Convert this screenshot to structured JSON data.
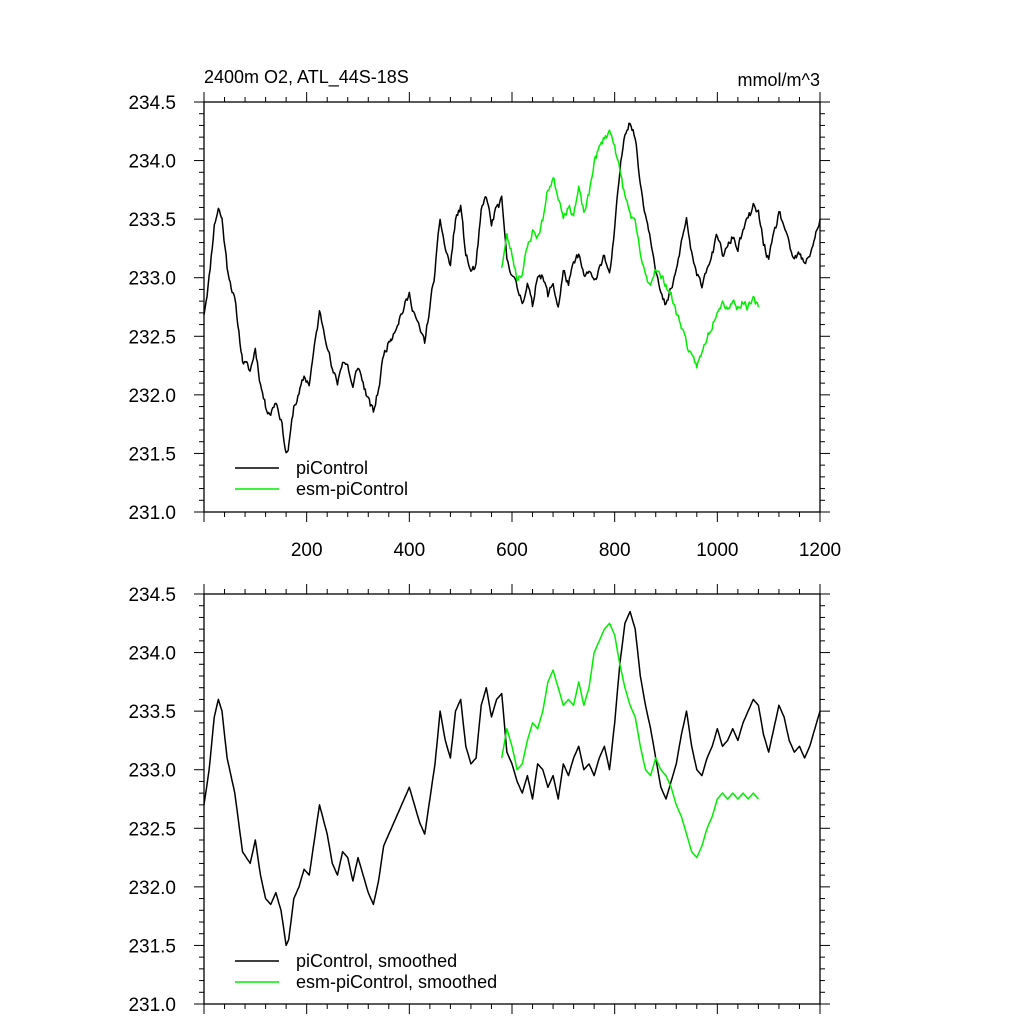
{
  "figure": {
    "title_left": "2400m O2, ATL_44S-18S",
    "title_right": "mmol/m^3"
  },
  "chart_data": [
    {
      "type": "line",
      "title": "2400m O2, ATL_44S-18S",
      "units": "mmol/m^3",
      "xlim": [
        0,
        1200
      ],
      "ylim": [
        231.0,
        234.5
      ],
      "xticks": [
        200,
        400,
        600,
        800,
        1000,
        1200
      ],
      "yticks": [
        "231.0",
        "231.5",
        "232.0",
        "232.5",
        "233.0",
        "233.5",
        "234.0",
        "234.5"
      ],
      "grid": false,
      "legend_position": "bottom-left",
      "series": [
        {
          "name": "piControl",
          "color": "#000000",
          "noise": 0.06,
          "seed": 11,
          "x": [
            0,
            10,
            20,
            28,
            35,
            45,
            60,
            75,
            90,
            100,
            110,
            120,
            130,
            140,
            150,
            160,
            165,
            175,
            185,
            195,
            205,
            215,
            225,
            240,
            250,
            260,
            270,
            280,
            290,
            300,
            310,
            320,
            330,
            340,
            350,
            365,
            380,
            390,
            400,
            410,
            420,
            430,
            440,
            450,
            460,
            470,
            480,
            490,
            500,
            510,
            520,
            530,
            540,
            550,
            560,
            570,
            580,
            590,
            600,
            610,
            620,
            630,
            640,
            650,
            660,
            670,
            680,
            690,
            700,
            710,
            720,
            730,
            740,
            750,
            760,
            770,
            780,
            790,
            800,
            810,
            820,
            830,
            840,
            850,
            860,
            870,
            880,
            890,
            900,
            910,
            920,
            930,
            940,
            950,
            960,
            970,
            980,
            990,
            1000,
            1010,
            1020,
            1030,
            1040,
            1050,
            1060,
            1070,
            1080,
            1090,
            1100,
            1110,
            1120,
            1130,
            1140,
            1150,
            1160,
            1170,
            1180,
            1190,
            1200
          ],
          "values": [
            232.7,
            233.0,
            233.45,
            233.6,
            233.5,
            233.1,
            232.8,
            232.3,
            232.2,
            232.4,
            232.1,
            231.9,
            231.85,
            231.95,
            231.8,
            231.5,
            231.55,
            231.9,
            232.0,
            232.15,
            232.1,
            232.4,
            232.7,
            232.45,
            232.2,
            232.1,
            232.3,
            232.25,
            232.05,
            232.25,
            232.1,
            231.95,
            231.85,
            232.05,
            232.35,
            232.5,
            232.65,
            232.75,
            232.85,
            232.7,
            232.55,
            232.45,
            232.75,
            233.05,
            233.5,
            233.25,
            233.1,
            233.5,
            233.6,
            233.2,
            233.05,
            233.1,
            233.55,
            233.7,
            233.45,
            233.6,
            233.65,
            233.15,
            233.05,
            232.9,
            232.8,
            232.95,
            232.75,
            233.05,
            233.0,
            232.85,
            232.95,
            232.75,
            233.05,
            232.95,
            233.1,
            233.2,
            233.0,
            233.05,
            232.95,
            233.1,
            233.2,
            233.0,
            233.4,
            233.9,
            234.25,
            234.35,
            234.2,
            233.8,
            233.55,
            233.35,
            233.1,
            232.85,
            232.75,
            232.9,
            233.05,
            233.3,
            233.5,
            233.2,
            233.0,
            232.95,
            233.1,
            233.2,
            233.35,
            233.2,
            233.25,
            233.35,
            233.25,
            233.4,
            233.5,
            233.6,
            233.55,
            233.3,
            233.15,
            233.35,
            233.55,
            233.45,
            233.25,
            233.15,
            233.2,
            233.1,
            233.2,
            233.35,
            233.5
          ]
        },
        {
          "name": "esm-piControl",
          "color": "#00ee00",
          "noise": 0.06,
          "seed": 23,
          "x": [
            580,
            590,
            600,
            610,
            620,
            630,
            640,
            650,
            660,
            670,
            680,
            690,
            700,
            710,
            720,
            730,
            740,
            750,
            760,
            770,
            780,
            790,
            800,
            810,
            820,
            830,
            840,
            850,
            860,
            870,
            880,
            890,
            900,
            910,
            920,
            930,
            940,
            950,
            960,
            970,
            980,
            990,
            1000,
            1010,
            1020,
            1030,
            1040,
            1050,
            1060,
            1070,
            1080
          ],
          "values": [
            233.1,
            233.35,
            233.2,
            233.0,
            233.05,
            233.25,
            233.4,
            233.35,
            233.5,
            233.75,
            233.85,
            233.7,
            233.55,
            233.6,
            233.55,
            233.75,
            233.55,
            233.7,
            234.0,
            234.1,
            234.2,
            234.25,
            234.15,
            233.9,
            233.7,
            233.55,
            233.45,
            233.2,
            233.0,
            232.95,
            233.1,
            233.0,
            232.95,
            232.85,
            232.7,
            232.6,
            232.45,
            232.3,
            232.25,
            232.35,
            232.5,
            232.6,
            232.75,
            232.8,
            232.75,
            232.8,
            232.75,
            232.8,
            232.75,
            232.8,
            232.75
          ]
        }
      ]
    },
    {
      "type": "line",
      "title": "",
      "xlim": [
        0,
        1200
      ],
      "ylim": [
        231.0,
        234.5
      ],
      "yticks": [
        "231.0",
        "231.5",
        "232.0",
        "232.5",
        "233.0",
        "233.5",
        "234.0",
        "234.5"
      ],
      "grid": false,
      "legend_position": "bottom-left",
      "series": [
        {
          "name": "piControl, smoothed",
          "color": "#000000",
          "noise": 0.0,
          "seed": 5,
          "x": [
            0,
            10,
            20,
            28,
            35,
            45,
            60,
            75,
            90,
            100,
            110,
            120,
            130,
            140,
            150,
            160,
            165,
            175,
            185,
            195,
            205,
            215,
            225,
            240,
            250,
            260,
            270,
            280,
            290,
            300,
            310,
            320,
            330,
            340,
            350,
            365,
            380,
            390,
            400,
            410,
            420,
            430,
            440,
            450,
            460,
            470,
            480,
            490,
            500,
            510,
            520,
            530,
            540,
            550,
            560,
            570,
            580,
            590,
            600,
            610,
            620,
            630,
            640,
            650,
            660,
            670,
            680,
            690,
            700,
            710,
            720,
            730,
            740,
            750,
            760,
            770,
            780,
            790,
            800,
            810,
            820,
            830,
            840,
            850,
            860,
            870,
            880,
            890,
            900,
            910,
            920,
            930,
            940,
            950,
            960,
            970,
            980,
            990,
            1000,
            1010,
            1020,
            1030,
            1040,
            1050,
            1060,
            1070,
            1080,
            1090,
            1100,
            1110,
            1120,
            1130,
            1140,
            1150,
            1160,
            1170,
            1180,
            1190,
            1200
          ],
          "values": [
            232.7,
            233.0,
            233.45,
            233.6,
            233.5,
            233.1,
            232.8,
            232.3,
            232.2,
            232.4,
            232.1,
            231.9,
            231.85,
            231.95,
            231.8,
            231.5,
            231.55,
            231.9,
            232.0,
            232.15,
            232.1,
            232.4,
            232.7,
            232.45,
            232.2,
            232.1,
            232.3,
            232.25,
            232.05,
            232.25,
            232.1,
            231.95,
            231.85,
            232.05,
            232.35,
            232.5,
            232.65,
            232.75,
            232.85,
            232.7,
            232.55,
            232.45,
            232.75,
            233.05,
            233.5,
            233.25,
            233.1,
            233.5,
            233.6,
            233.2,
            233.05,
            233.1,
            233.55,
            233.7,
            233.45,
            233.6,
            233.65,
            233.15,
            233.05,
            232.9,
            232.8,
            232.95,
            232.75,
            233.05,
            233.0,
            232.85,
            232.95,
            232.75,
            233.05,
            232.95,
            233.1,
            233.2,
            233.0,
            233.05,
            232.95,
            233.1,
            233.2,
            233.0,
            233.4,
            233.9,
            234.25,
            234.35,
            234.2,
            233.8,
            233.55,
            233.35,
            233.1,
            232.85,
            232.75,
            232.9,
            233.05,
            233.3,
            233.5,
            233.2,
            233.0,
            232.95,
            233.1,
            233.2,
            233.35,
            233.2,
            233.25,
            233.35,
            233.25,
            233.4,
            233.5,
            233.6,
            233.55,
            233.3,
            233.15,
            233.35,
            233.55,
            233.45,
            233.25,
            233.15,
            233.2,
            233.1,
            233.2,
            233.35,
            233.5
          ]
        },
        {
          "name": "esm-piControl, smoothed",
          "color": "#00ee00",
          "noise": 0.0,
          "seed": 7,
          "x": [
            580,
            590,
            600,
            610,
            620,
            630,
            640,
            650,
            660,
            670,
            680,
            690,
            700,
            710,
            720,
            730,
            740,
            750,
            760,
            770,
            780,
            790,
            800,
            810,
            820,
            830,
            840,
            850,
            860,
            870,
            880,
            890,
            900,
            910,
            920,
            930,
            940,
            950,
            960,
            970,
            980,
            990,
            1000,
            1010,
            1020,
            1030,
            1040,
            1050,
            1060,
            1070,
            1080
          ],
          "values": [
            233.1,
            233.35,
            233.2,
            233.0,
            233.05,
            233.25,
            233.4,
            233.35,
            233.5,
            233.75,
            233.85,
            233.7,
            233.55,
            233.6,
            233.55,
            233.75,
            233.55,
            233.7,
            234.0,
            234.1,
            234.2,
            234.25,
            234.15,
            233.9,
            233.7,
            233.55,
            233.45,
            233.2,
            233.0,
            232.95,
            233.1,
            233.0,
            232.95,
            232.85,
            232.7,
            232.6,
            232.45,
            232.3,
            232.25,
            232.35,
            232.5,
            232.6,
            232.75,
            232.8,
            232.75,
            232.8,
            232.75,
            232.8,
            232.75,
            232.8,
            232.75
          ]
        }
      ]
    }
  ]
}
